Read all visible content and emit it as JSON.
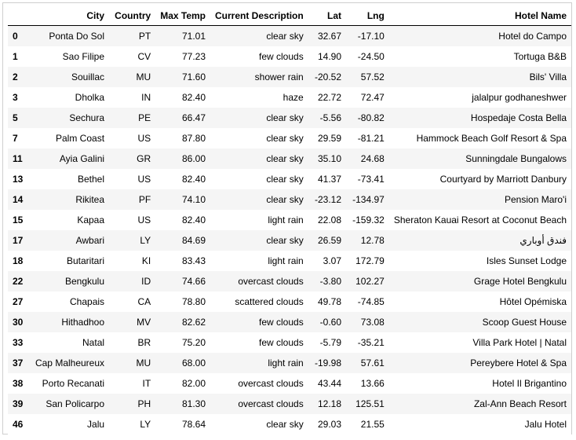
{
  "table": {
    "columns": [
      "",
      "City",
      "Country",
      "Max Temp",
      "Current Description",
      "Lat",
      "Lng",
      "Hotel Name"
    ],
    "rows": [
      {
        "idx": "0",
        "city": "Ponta Do Sol",
        "country": "PT",
        "max_temp": "71.01",
        "desc": "clear sky",
        "lat": "32.67",
        "lng": "-17.10",
        "hotel": "Hotel do Campo"
      },
      {
        "idx": "1",
        "city": "Sao Filipe",
        "country": "CV",
        "max_temp": "77.23",
        "desc": "few clouds",
        "lat": "14.90",
        "lng": "-24.50",
        "hotel": "Tortuga B&B"
      },
      {
        "idx": "2",
        "city": "Souillac",
        "country": "MU",
        "max_temp": "71.60",
        "desc": "shower rain",
        "lat": "-20.52",
        "lng": "57.52",
        "hotel": "Bils' Villa"
      },
      {
        "idx": "3",
        "city": "Dholka",
        "country": "IN",
        "max_temp": "82.40",
        "desc": "haze",
        "lat": "22.72",
        "lng": "72.47",
        "hotel": "jalalpur godhaneshwer"
      },
      {
        "idx": "5",
        "city": "Sechura",
        "country": "PE",
        "max_temp": "66.47",
        "desc": "clear sky",
        "lat": "-5.56",
        "lng": "-80.82",
        "hotel": "Hospedaje Costa Bella"
      },
      {
        "idx": "7",
        "city": "Palm Coast",
        "country": "US",
        "max_temp": "87.80",
        "desc": "clear sky",
        "lat": "29.59",
        "lng": "-81.21",
        "hotel": "Hammock Beach Golf Resort & Spa"
      },
      {
        "idx": "11",
        "city": "Ayia Galini",
        "country": "GR",
        "max_temp": "86.00",
        "desc": "clear sky",
        "lat": "35.10",
        "lng": "24.68",
        "hotel": "Sunningdale Bungalows"
      },
      {
        "idx": "13",
        "city": "Bethel",
        "country": "US",
        "max_temp": "82.40",
        "desc": "clear sky",
        "lat": "41.37",
        "lng": "-73.41",
        "hotel": "Courtyard by Marriott Danbury"
      },
      {
        "idx": "14",
        "city": "Rikitea",
        "country": "PF",
        "max_temp": "74.10",
        "desc": "clear sky",
        "lat": "-23.12",
        "lng": "-134.97",
        "hotel": "Pension Maro'i"
      },
      {
        "idx": "15",
        "city": "Kapaa",
        "country": "US",
        "max_temp": "82.40",
        "desc": "light rain",
        "lat": "22.08",
        "lng": "-159.32",
        "hotel": "Sheraton Kauai Resort at Coconut Beach"
      },
      {
        "idx": "17",
        "city": "Awbari",
        "country": "LY",
        "max_temp": "84.69",
        "desc": "clear sky",
        "lat": "26.59",
        "lng": "12.78",
        "hotel": "فندق أوباري"
      },
      {
        "idx": "18",
        "city": "Butaritari",
        "country": "KI",
        "max_temp": "83.43",
        "desc": "light rain",
        "lat": "3.07",
        "lng": "172.79",
        "hotel": "Isles Sunset Lodge"
      },
      {
        "idx": "22",
        "city": "Bengkulu",
        "country": "ID",
        "max_temp": "74.66",
        "desc": "overcast clouds",
        "lat": "-3.80",
        "lng": "102.27",
        "hotel": "Grage Hotel Bengkulu"
      },
      {
        "idx": "27",
        "city": "Chapais",
        "country": "CA",
        "max_temp": "78.80",
        "desc": "scattered clouds",
        "lat": "49.78",
        "lng": "-74.85",
        "hotel": "Hôtel Opémiska"
      },
      {
        "idx": "30",
        "city": "Hithadhoo",
        "country": "MV",
        "max_temp": "82.62",
        "desc": "few clouds",
        "lat": "-0.60",
        "lng": "73.08",
        "hotel": "Scoop Guest House"
      },
      {
        "idx": "33",
        "city": "Natal",
        "country": "BR",
        "max_temp": "75.20",
        "desc": "few clouds",
        "lat": "-5.79",
        "lng": "-35.21",
        "hotel": "Villa Park Hotel | Natal"
      },
      {
        "idx": "37",
        "city": "Cap Malheureux",
        "country": "MU",
        "max_temp": "68.00",
        "desc": "light rain",
        "lat": "-19.98",
        "lng": "57.61",
        "hotel": "Pereybere Hotel & Spa"
      },
      {
        "idx": "38",
        "city": "Porto Recanati",
        "country": "IT",
        "max_temp": "82.00",
        "desc": "overcast clouds",
        "lat": "43.44",
        "lng": "13.66",
        "hotel": "Hotel Il Brigantino"
      },
      {
        "idx": "39",
        "city": "San Policarpo",
        "country": "PH",
        "max_temp": "81.30",
        "desc": "overcast clouds",
        "lat": "12.18",
        "lng": "125.51",
        "hotel": "Zal-Ann Beach Resort"
      },
      {
        "idx": "46",
        "city": "Jalu",
        "country": "LY",
        "max_temp": "78.64",
        "desc": "clear sky",
        "lat": "29.03",
        "lng": "21.55",
        "hotel": "Jalu Hotel"
      }
    ]
  }
}
